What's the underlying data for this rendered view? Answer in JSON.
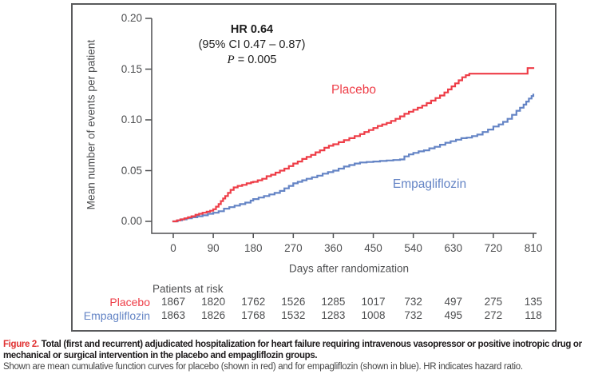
{
  "figure": {
    "caption_label": "Figure 2.",
    "caption_bold": " Total (first and recurrent) adjudicated hospitalization for heart failure requiring intravenous vasopressor or positive inotropic drug or mechanical or surgical intervention in the placebo and empagliflozin groups.",
    "caption_note": "Shown are mean cumulative function curves for placebo (shown in red) and for empagliflozin (shown in blue). HR indicates hazard ratio."
  },
  "annotation": {
    "hr": "HR 0.64",
    "ci": "(95% CI 0.47 – 0.87)",
    "p_italic": "P",
    "p_rest": " = 0.005"
  },
  "chart_data": {
    "type": "line",
    "subtype": "step-cumulative-incidence",
    "title": "",
    "xlabel": "Days after randomization",
    "ylabel": "Mean number of events per patient",
    "xlim": [
      0,
      810
    ],
    "ylim": [
      0,
      0.2
    ],
    "grid": false,
    "legend_position": "inline-curve-labels",
    "x_ticks": [
      0,
      90,
      180,
      270,
      360,
      450,
      540,
      630,
      720,
      810
    ],
    "y_tick_labels": [
      "0.00",
      "0.05",
      "0.10",
      "0.15",
      "0.20"
    ],
    "series": [
      {
        "name": "Empagliflozin",
        "color": "#6484c5",
        "points": [
          [
            0,
            0
          ],
          [
            10,
            0.001
          ],
          [
            20,
            0.002
          ],
          [
            30,
            0.003
          ],
          [
            42,
            0.004
          ],
          [
            54,
            0.005
          ],
          [
            66,
            0.006
          ],
          [
            78,
            0.0075
          ],
          [
            90,
            0.0085
          ],
          [
            102,
            0.01
          ],
          [
            114,
            0.0125
          ],
          [
            126,
            0.014
          ],
          [
            138,
            0.0155
          ],
          [
            150,
            0.017
          ],
          [
            162,
            0.0185
          ],
          [
            174,
            0.0205
          ],
          [
            180,
            0.022
          ],
          [
            192,
            0.0235
          ],
          [
            204,
            0.025
          ],
          [
            216,
            0.0265
          ],
          [
            228,
            0.028
          ],
          [
            240,
            0.03
          ],
          [
            250,
            0.0325
          ],
          [
            260,
            0.035
          ],
          [
            270,
            0.0375
          ],
          [
            280,
            0.039
          ],
          [
            290,
            0.0405
          ],
          [
            300,
            0.042
          ],
          [
            312,
            0.0435
          ],
          [
            324,
            0.045
          ],
          [
            336,
            0.047
          ],
          [
            348,
            0.0485
          ],
          [
            360,
            0.05
          ],
          [
            372,
            0.052
          ],
          [
            384,
            0.054
          ],
          [
            396,
            0.0555
          ],
          [
            408,
            0.057
          ],
          [
            420,
            0.058
          ],
          [
            435,
            0.0585
          ],
          [
            450,
            0.059
          ],
          [
            465,
            0.0595
          ],
          [
            480,
            0.06
          ],
          [
            495,
            0.0605
          ],
          [
            510,
            0.061
          ],
          [
            520,
            0.064
          ],
          [
            530,
            0.066
          ],
          [
            540,
            0.0675
          ],
          [
            552,
            0.069
          ],
          [
            564,
            0.07
          ],
          [
            576,
            0.072
          ],
          [
            588,
            0.0735
          ],
          [
            600,
            0.0755
          ],
          [
            612,
            0.0775
          ],
          [
            624,
            0.079
          ],
          [
            636,
            0.0805
          ],
          [
            648,
            0.082
          ],
          [
            660,
            0.0825
          ],
          [
            672,
            0.084
          ],
          [
            684,
            0.0855
          ],
          [
            696,
            0.088
          ],
          [
            708,
            0.0905
          ],
          [
            720,
            0.0935
          ],
          [
            732,
            0.0955
          ],
          [
            742,
            0.098
          ],
          [
            752,
            0.101
          ],
          [
            762,
            0.105
          ],
          [
            772,
            0.109
          ],
          [
            780,
            0.112
          ],
          [
            788,
            0.115
          ],
          [
            794,
            0.118
          ],
          [
            800,
            0.121
          ],
          [
            806,
            0.1235
          ],
          [
            810,
            0.125
          ]
        ]
      },
      {
        "name": "Placebo",
        "color": "#ee3d47",
        "points": [
          [
            0,
            0
          ],
          [
            8,
            0.001
          ],
          [
            16,
            0.002
          ],
          [
            25,
            0.003
          ],
          [
            33,
            0.004
          ],
          [
            41,
            0.005
          ],
          [
            50,
            0.0065
          ],
          [
            58,
            0.0075
          ],
          [
            66,
            0.0085
          ],
          [
            75,
            0.0095
          ],
          [
            83,
            0.0105
          ],
          [
            90,
            0.012
          ],
          [
            96,
            0.0145
          ],
          [
            102,
            0.017
          ],
          [
            107,
            0.02
          ],
          [
            112,
            0.0225
          ],
          [
            117,
            0.025
          ],
          [
            123,
            0.028
          ],
          [
            129,
            0.031
          ],
          [
            136,
            0.0335
          ],
          [
            145,
            0.035
          ],
          [
            155,
            0.036
          ],
          [
            165,
            0.0375
          ],
          [
            175,
            0.0385
          ],
          [
            180,
            0.039
          ],
          [
            190,
            0.0405
          ],
          [
            200,
            0.042
          ],
          [
            210,
            0.0445
          ],
          [
            220,
            0.046
          ],
          [
            230,
            0.048
          ],
          [
            240,
            0.05
          ],
          [
            250,
            0.052
          ],
          [
            260,
            0.0545
          ],
          [
            270,
            0.057
          ],
          [
            280,
            0.059
          ],
          [
            290,
            0.0615
          ],
          [
            300,
            0.0635
          ],
          [
            310,
            0.0655
          ],
          [
            320,
            0.068
          ],
          [
            330,
            0.07
          ],
          [
            340,
            0.0725
          ],
          [
            350,
            0.0745
          ],
          [
            360,
            0.076
          ],
          [
            372,
            0.078
          ],
          [
            384,
            0.08
          ],
          [
            396,
            0.082
          ],
          [
            408,
            0.084
          ],
          [
            420,
            0.086
          ],
          [
            430,
            0.088
          ],
          [
            440,
            0.09
          ],
          [
            450,
            0.092
          ],
          [
            460,
            0.094
          ],
          [
            470,
            0.0955
          ],
          [
            480,
            0.097
          ],
          [
            490,
            0.099
          ],
          [
            500,
            0.101
          ],
          [
            510,
            0.1035
          ],
          [
            520,
            0.106
          ],
          [
            530,
            0.108
          ],
          [
            540,
            0.11
          ],
          [
            550,
            0.112
          ],
          [
            560,
            0.114
          ],
          [
            570,
            0.1165
          ],
          [
            580,
            0.119
          ],
          [
            590,
            0.1215
          ],
          [
            600,
            0.124
          ],
          [
            610,
            0.127
          ],
          [
            618,
            0.13
          ],
          [
            626,
            0.133
          ],
          [
            634,
            0.136
          ],
          [
            642,
            0.139
          ],
          [
            650,
            0.142
          ],
          [
            658,
            0.144
          ],
          [
            666,
            0.1455
          ],
          [
            700,
            0.1455
          ],
          [
            740,
            0.1455
          ],
          [
            780,
            0.1455
          ],
          [
            795,
            0.1455
          ],
          [
            797,
            0.151
          ],
          [
            810,
            0.151
          ]
        ]
      }
    ],
    "at_risk": {
      "header": "Patients at risk",
      "rows": [
        {
          "label": "Placebo",
          "color": "#ee3d47",
          "values": [
            "1867",
            "1820",
            "1762",
            "1526",
            "1285",
            "1017",
            "732",
            "497",
            "275",
            "135"
          ]
        },
        {
          "label": "Empagliflozin",
          "color": "#6484c5",
          "values": [
            "1863",
            "1826",
            "1768",
            "1532",
            "1283",
            "1008",
            "732",
            "495",
            "272",
            "118"
          ]
        }
      ]
    }
  },
  "colors": {
    "placebo": "#ee3d47",
    "empagliflozin": "#6484c5",
    "axis": "#4e4f51",
    "caption_red": "#e03131"
  }
}
